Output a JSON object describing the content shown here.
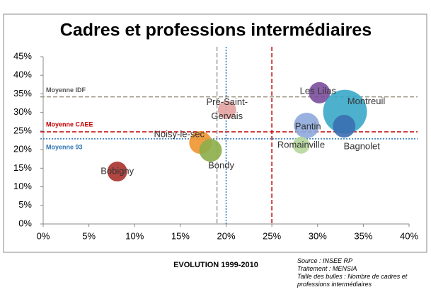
{
  "chart_data": {
    "type": "bubble",
    "title": "Cadres et professions intermédiaires",
    "xlabel": "EVOLUTION 1999-2010",
    "notes": [
      "Source : INSEE RP",
      "Traitement : MENSIA",
      "Taille des bulles : Nombre de cadres et professions intermédiaires"
    ],
    "xlim": [
      0,
      40
    ],
    "ylim": [
      0,
      45
    ],
    "xticks": [
      {
        "value": 0,
        "label": "0%"
      },
      {
        "value": 5,
        "label": "5%"
      },
      {
        "value": 10,
        "label": "10%"
      },
      {
        "value": 15,
        "label": "15%"
      },
      {
        "value": 20,
        "label": "20%"
      },
      {
        "value": 25,
        "label": "25%"
      },
      {
        "value": 30,
        "label": "30%"
      },
      {
        "value": 35,
        "label": "35%"
      },
      {
        "value": 40,
        "label": "40%"
      }
    ],
    "yticks": [
      {
        "value": 0,
        "label": "0%"
      },
      {
        "value": 5,
        "label": "5%"
      },
      {
        "value": 10,
        "label": "10%"
      },
      {
        "value": 15,
        "label": "15%"
      },
      {
        "value": 20,
        "label": "20%"
      },
      {
        "value": 25,
        "label": "25%"
      },
      {
        "value": 30,
        "label": "30%"
      },
      {
        "value": 35,
        "label": "35%"
      },
      {
        "value": 40,
        "label": "40%"
      },
      {
        "value": 45,
        "label": "45%"
      }
    ],
    "grid": false,
    "reference_lines": [
      {
        "axis": "y",
        "value": 34.2,
        "label": "Moyenne IDF",
        "color": "#9a9480",
        "style": "dashed"
      },
      {
        "axis": "y",
        "value": 24.8,
        "label": "Moyenne CAEE",
        "color": "#c00000",
        "style": "dashed"
      },
      {
        "axis": "y",
        "value": 22.9,
        "label": "Moyenne 93",
        "color": "#2e75b6",
        "style": "dotted"
      },
      {
        "axis": "x",
        "value": 19,
        "color": "#9a9a9a",
        "style": "dashed"
      },
      {
        "axis": "x",
        "value": 20,
        "color": "#2e75b6",
        "style": "dotted"
      },
      {
        "axis": "x",
        "value": 25,
        "color": "#c00000",
        "style": "dashed"
      }
    ],
    "points": [
      {
        "name": "Bobigny",
        "x": 8.1,
        "y": 14.1,
        "size": 4900,
        "color": "#a8322c"
      },
      {
        "name": "Noisy-le-sec",
        "x": 17.2,
        "y": 21.9,
        "size": 6400,
        "color": "#f0952e"
      },
      {
        "name": "Bondy",
        "x": 18.3,
        "y": 19.8,
        "size": 6400,
        "color": "#8cae4a"
      },
      {
        "name": "Pré-Saint-Gervais",
        "x": 20.1,
        "y": 30.7,
        "size": 4200,
        "color": "#e3a2a0"
      },
      {
        "name": "Les Lilas",
        "x": 30.2,
        "y": 35.3,
        "size": 5600,
        "color": "#7b4e9c"
      },
      {
        "name": "Montreuil",
        "x": 33.0,
        "y": 30.2,
        "size": 24000,
        "color": "#3aa8c9"
      },
      {
        "name": "Pantin",
        "x": 28.8,
        "y": 26.5,
        "size": 8100,
        "color": "#8ea9dc"
      },
      {
        "name": "Bagnolet",
        "x": 32.9,
        "y": 26.3,
        "size": 6400,
        "color": "#3b6fb1"
      },
      {
        "name": "Romainville",
        "x": 28.2,
        "y": 21.2,
        "size": 3600,
        "color": "#b6d79a"
      }
    ]
  }
}
